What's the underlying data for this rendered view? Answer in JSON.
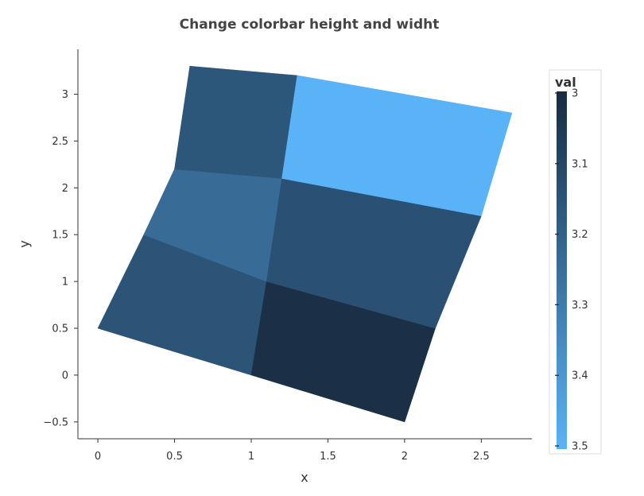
{
  "chart_data": {
    "type": "heatmap",
    "title": "Change colorbar height and widht",
    "xlabel": "x",
    "ylabel": "y",
    "xlim": [
      -0.13,
      2.83
    ],
    "ylim": [
      -0.68,
      3.48
    ],
    "x_ticks": [
      "0",
      "0.5",
      "1",
      "1.5",
      "2",
      "2.5"
    ],
    "x_tick_values": [
      0,
      0.5,
      1,
      1.5,
      2,
      2.5
    ],
    "y_ticks": [
      "−0.5",
      "0",
      "0.5",
      "1",
      "1.5",
      "2",
      "2.5",
      "3"
    ],
    "y_tick_values": [
      -0.5,
      0,
      0.5,
      1,
      1.5,
      2,
      2.5,
      3
    ],
    "grid": false,
    "mesh": {
      "x": [
        [
          0,
          1,
          2
        ],
        [
          0.3,
          1.1,
          2.2
        ],
        [
          0.5,
          1.2,
          2.5
        ],
        [
          0.6,
          1.3,
          2.7
        ]
      ],
      "y": [
        [
          0.5,
          0,
          -0.5
        ],
        [
          1.5,
          1,
          0.5
        ],
        [
          2.2,
          2.1,
          1.7
        ],
        [
          3.3,
          3.2,
          2.8
        ]
      ],
      "values": [
        [
          3.15,
          3.02
        ],
        [
          3.24,
          3.14
        ],
        [
          3.16,
          3.5
        ]
      ]
    },
    "colorbar": {
      "title": "val",
      "range": [
        3,
        3.5
      ],
      "reversed": true,
      "ticks": [
        "3",
        "3.1",
        "3.2",
        "3.3",
        "3.4",
        "3.5"
      ],
      "tick_values": [
        3,
        3.1,
        3.2,
        3.3,
        3.4,
        3.5
      ],
      "color_low": "#182b40",
      "color_high": "#5ab3f6"
    }
  }
}
